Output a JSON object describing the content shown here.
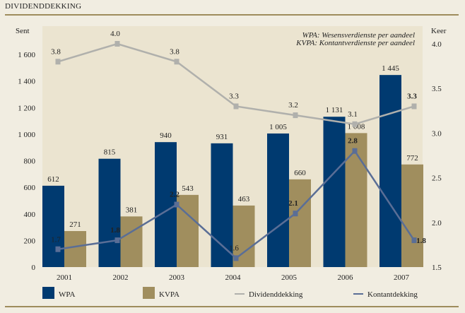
{
  "header": {
    "title": "DIVIDENDDEKKING"
  },
  "chart_data": {
    "type": "bar",
    "title": "",
    "categories": [
      "2001",
      "2002",
      "2003",
      "2004",
      "2005",
      "2006",
      "2007"
    ],
    "ylabel_left": "Sent",
    "ylabel_right": "Keer",
    "ylim_left": [
      0,
      1800
    ],
    "ylim_right": [
      1.5,
      4.2
    ],
    "yticks_left": [
      "0",
      "200",
      "400",
      "600",
      "800",
      "1 000",
      "1 200",
      "1 400",
      "1 600"
    ],
    "yticks_right": [
      "1.5",
      "2.0",
      "2.5",
      "3.0",
      "3.5",
      "4.0"
    ],
    "grid": false,
    "notes": [
      "WPA: Wesensverdienste per aandeel",
      "KVPA: Kontantverdienste per aandeel"
    ],
    "series": [
      {
        "name": "WPA",
        "kind": "bar",
        "axis": "left",
        "values": [
          612,
          815,
          940,
          931,
          1005,
          1131,
          1445
        ],
        "labels": [
          "612",
          "815",
          "940",
          "931",
          "1 005",
          "1 131",
          "1 445"
        ],
        "color": "#003a70"
      },
      {
        "name": "KVPA",
        "kind": "bar",
        "axis": "left",
        "values": [
          271,
          381,
          543,
          463,
          660,
          1008,
          772
        ],
        "labels": [
          "271",
          "381",
          "543",
          "463",
          "660",
          "1 008",
          "772"
        ],
        "color": "#a08e5e"
      },
      {
        "name": "Dividenddekking",
        "kind": "line",
        "axis": "right",
        "values": [
          3.8,
          4.0,
          3.8,
          3.3,
          3.2,
          3.1,
          3.3
        ],
        "labels": [
          "3.8",
          "4.0",
          "3.8",
          "3.3",
          "3.2",
          "3.1",
          "3.3"
        ],
        "color": "#b0b0ac"
      },
      {
        "name": "Kontantdekking",
        "kind": "line",
        "axis": "right",
        "values": [
          1.7,
          1.8,
          2.2,
          1.6,
          2.1,
          2.8,
          1.8
        ],
        "labels": [
          "1.7",
          "1.8",
          "2.2",
          "1.6",
          "2.1",
          "2.8",
          "1.8"
        ],
        "color": "#5a6e96"
      }
    ],
    "plot_bg": "#ebe4d0",
    "legend": "bottom"
  }
}
